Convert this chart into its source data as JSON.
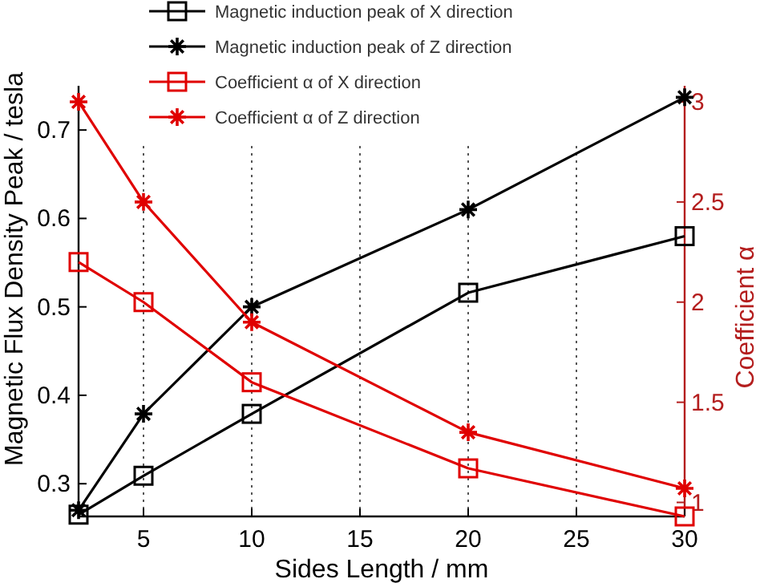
{
  "chart_data": {
    "type": "line",
    "xlabel": "Sides Length / mm",
    "ylabel": "Magnetic Flux Density Peak / tesla",
    "y2label": "Coefficient α",
    "x": [
      2,
      5,
      10,
      20,
      30
    ],
    "xlim": [
      2,
      30
    ],
    "xticks": [
      5,
      10,
      15,
      20,
      25,
      30
    ],
    "ylim": [
      0.263,
      0.75
    ],
    "yticks": [
      0.3,
      0.4,
      0.5,
      0.6,
      0.7
    ],
    "y2lim": [
      0.93,
      3.08
    ],
    "y2ticks": [
      1,
      1.5,
      2,
      2.5,
      3
    ],
    "grid": "x",
    "legend": "top",
    "line_style": "solid",
    "series": [
      {
        "name": "Magnetic induction peak of X direction",
        "color": "#000000",
        "marker": "square",
        "values": [
          0.265,
          0.309,
          0.379,
          0.516,
          0.58
        ]
      },
      {
        "name": "Magnetic induction peak of Z direction",
        "color": "#000000",
        "marker": "cross",
        "values": [
          0.27,
          0.379,
          0.5,
          0.61,
          0.737
        ]
      },
      {
        "name": "Coefficient α of X direction",
        "color": "#e00000",
        "marker": "square",
        "axis": "y2",
        "values": [
          2.2,
          2.0,
          1.6,
          1.17,
          0.93
        ]
      },
      {
        "name": "Coefficient α of Z direction",
        "color": "#e00000",
        "marker": "cross",
        "axis": "y2",
        "values": [
          3.0,
          2.5,
          1.9,
          1.35,
          1.07
        ]
      }
    ]
  }
}
